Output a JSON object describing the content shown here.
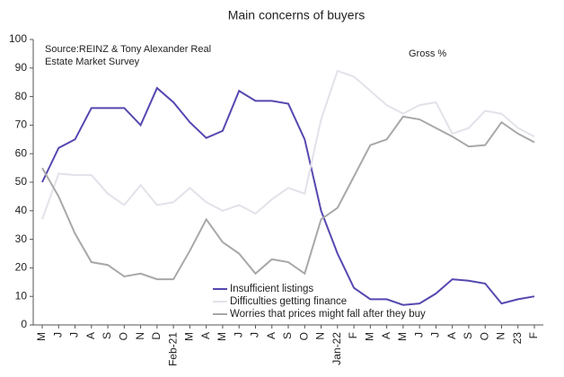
{
  "chart_data": {
    "type": "line",
    "title": "Main concerns of buyers",
    "annotations": [
      "Source:REINZ & Tony Alexander Real",
      "Estate Market Survey",
      "Gross %"
    ],
    "categories": [
      "M",
      "J",
      "J",
      "A",
      "S",
      "O",
      "N",
      "D",
      "Feb-21",
      "M",
      "A",
      "M",
      "J",
      "J",
      "A",
      "S",
      "O",
      "N",
      "Jan-22",
      "F",
      "M",
      "A",
      "M",
      "J",
      "J",
      "A",
      "S",
      "O",
      "N",
      "23",
      "F"
    ],
    "series": [
      {
        "name": "Insufficient listings",
        "color": "#5548b0",
        "values": [
          50,
          62,
          65,
          76,
          76,
          76,
          70,
          83,
          78,
          71,
          65.5,
          68,
          82,
          78.5,
          78.5,
          77.5,
          65,
          40,
          25,
          13,
          9,
          9,
          7,
          7.5,
          11,
          16,
          15.5,
          14.5,
          7.5,
          9,
          10
        ]
      },
      {
        "name": "Difficulties getting finance",
        "color": "#e2e2ea",
        "values": [
          37,
          53,
          52.5,
          52.5,
          46,
          42,
          49,
          42,
          43,
          48,
          43,
          40,
          42,
          39,
          44,
          48,
          46,
          72,
          89,
          87,
          82,
          77,
          74,
          77,
          78,
          67,
          69,
          75,
          74,
          69,
          66
        ]
      },
      {
        "name": "Worries that prices might fall after they buy",
        "color": "#a8a8a8",
        "values": [
          55,
          45,
          32,
          22,
          21,
          17,
          18,
          16,
          16,
          26,
          37,
          29,
          25,
          18,
          23,
          22,
          18,
          37,
          41,
          52,
          63,
          65,
          73,
          72,
          69,
          66,
          62.5,
          63,
          71,
          67,
          64
        ]
      }
    ],
    "ylim": [
      0,
      100
    ],
    "yticks": [
      0,
      10,
      20,
      30,
      40,
      50,
      60,
      70,
      80,
      90,
      100
    ],
    "grid": false
  }
}
